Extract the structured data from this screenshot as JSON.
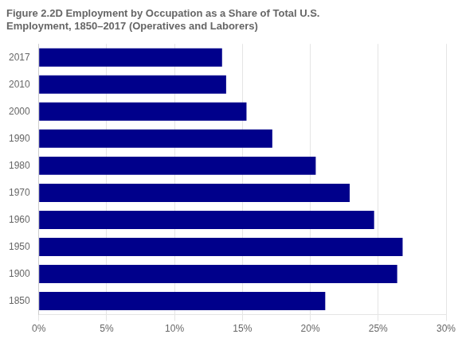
{
  "chart_data": {
    "type": "bar",
    "orientation": "horizontal",
    "title": "Figure 2.2D Employment by Occupation as a Share of Total U.S.\nEmployment, 1850–2017 (Operatives and Laborers)",
    "categories": [
      "2017",
      "2010",
      "2000",
      "1990",
      "1980",
      "1970",
      "1960",
      "1950",
      "1900",
      "1850"
    ],
    "values": [
      0.135,
      0.138,
      0.153,
      0.172,
      0.204,
      0.229,
      0.247,
      0.268,
      0.264,
      0.211
    ],
    "color": "#00008B",
    "xlim": [
      0,
      0.3
    ],
    "xticks": [
      {
        "value": 0,
        "label": "0%"
      },
      {
        "value": 0.05,
        "label": "5%"
      },
      {
        "value": 0.1,
        "label": "10%"
      },
      {
        "value": 0.15,
        "label": "15%"
      },
      {
        "value": 0.2,
        "label": "20%"
      },
      {
        "value": 0.25,
        "label": "25%"
      },
      {
        "value": 0.3,
        "label": "30%"
      }
    ],
    "grid": true
  }
}
